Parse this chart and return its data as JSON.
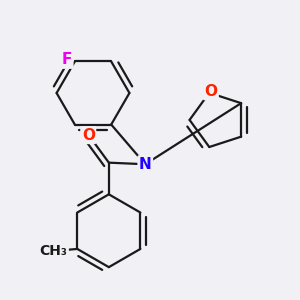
{
  "bg_color": "#f0f0f5",
  "bond_color": "#1a1a1a",
  "bond_width": 1.6,
  "dbo": 0.018,
  "atom_colors": {
    "F": "#ee00ee",
    "O": "#ff2200",
    "N": "#2200ff",
    "C": "#1a1a1a"
  },
  "font_size_atom": 11,
  "font_size_ch3": 10
}
